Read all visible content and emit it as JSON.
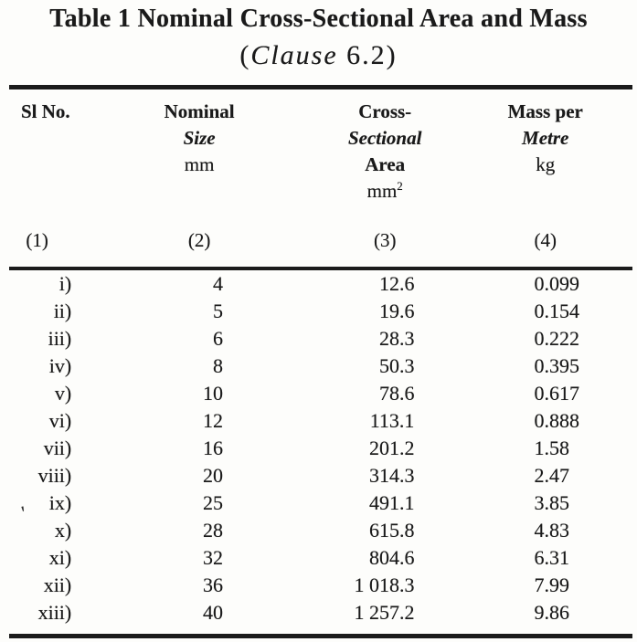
{
  "page": {
    "background": "#fdfdfb",
    "ink": "#1b1b1b"
  },
  "title": {
    "line1": "Table 1 Nominal Cross-Sectional Area and Mass",
    "clause_open": "(",
    "clause_word": "Clause",
    "clause_rest": " 6.2)"
  },
  "table": {
    "columns": [
      {
        "id": "sl",
        "lines": [
          "Sl No."
        ],
        "unit": "",
        "num": "(1)"
      },
      {
        "id": "size",
        "lines": [
          "Nominal",
          "Size"
        ],
        "unit": "mm",
        "num": "(2)"
      },
      {
        "id": "area",
        "lines": [
          "Cross-",
          "Sectional",
          "Area"
        ],
        "unit": "mm",
        "unit_sup": "2",
        "num": "(3)"
      },
      {
        "id": "mass",
        "lines": [
          "Mass per",
          "Metre"
        ],
        "unit": "kg",
        "num": "(4)"
      }
    ],
    "rows": [
      {
        "sl": "i)",
        "size": "4",
        "area": "12.6",
        "mass": "0.099"
      },
      {
        "sl": "ii)",
        "size": "5",
        "area": "19.6",
        "mass": "0.154"
      },
      {
        "sl": "iii)",
        "size": "6",
        "area": "28.3",
        "mass": "0.222"
      },
      {
        "sl": "iv)",
        "size": "8",
        "area": "50.3",
        "mass": "0.395"
      },
      {
        "sl": "v)",
        "size": "10",
        "area": "78.6",
        "mass": "0.617"
      },
      {
        "sl": "vi)",
        "size": "12",
        "area": "113.1",
        "mass": "0.888"
      },
      {
        "sl": "vii)",
        "size": "16",
        "area": "201.2",
        "mass": "1.58"
      },
      {
        "sl": "viii)",
        "size": "20",
        "area": "314.3",
        "mass": "2.47"
      },
      {
        "sl": "ix)",
        "size": "25",
        "area": "491.1",
        "mass": "3.85"
      },
      {
        "sl": "x)",
        "size": "28",
        "area": "615.8",
        "mass": "4.83"
      },
      {
        "sl": "xi)",
        "size": "32",
        "area": "804.6",
        "mass": "6.31"
      },
      {
        "sl": "xii)",
        "size": "36",
        "area": "1 018.3",
        "mass": "7.99"
      },
      {
        "sl": "xiii)",
        "size": "40",
        "area": "1 257.2",
        "mass": "9.86"
      }
    ]
  },
  "artifact": {
    "mark": "'"
  }
}
